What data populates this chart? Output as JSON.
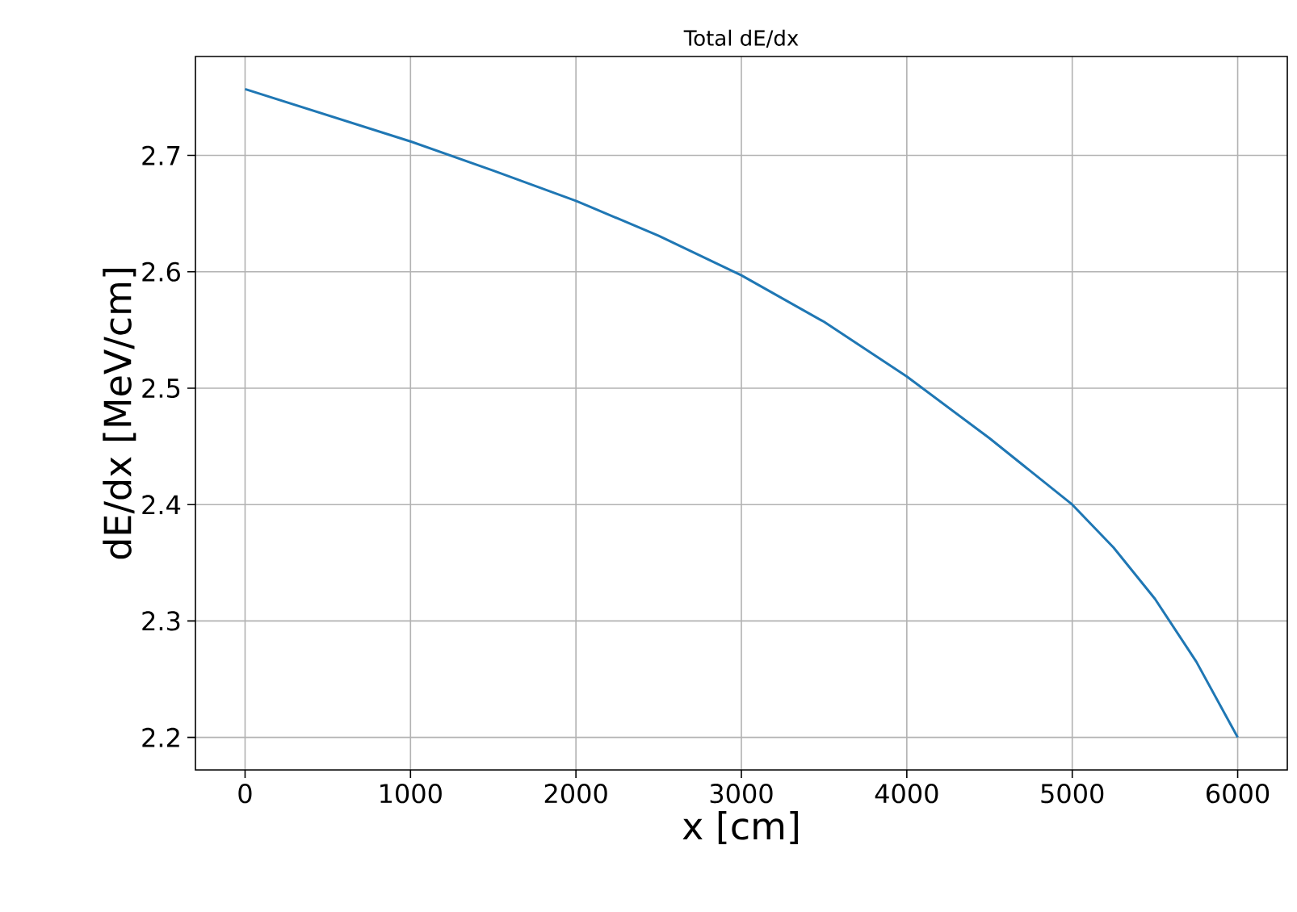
{
  "chart_data": {
    "type": "line",
    "title": "Total dE/dx",
    "xlabel": "x [cm]",
    "ylabel": "dE/dx [MeV/cm]",
    "x": [
      0,
      1000,
      1500,
      2000,
      2500,
      3000,
      3500,
      4000,
      4500,
      5000,
      5250,
      5500,
      5750,
      6000
    ],
    "series": [
      {
        "color": "#1f77b4",
        "values": [
          2.757,
          2.712,
          2.687,
          2.661,
          2.631,
          2.597,
          2.557,
          2.51,
          2.457,
          2.4,
          2.363,
          2.319,
          2.265,
          2.2
        ]
      }
    ],
    "xlim": [
      -300,
      6300
    ],
    "ylim": [
      2.172,
      2.785
    ],
    "xticks": [
      0,
      1000,
      2000,
      3000,
      4000,
      5000,
      6000
    ],
    "yticks": [
      2.2,
      2.3,
      2.4,
      2.5,
      2.6,
      2.7
    ],
    "grid": true,
    "marker": "none",
    "line_style": "solid"
  }
}
